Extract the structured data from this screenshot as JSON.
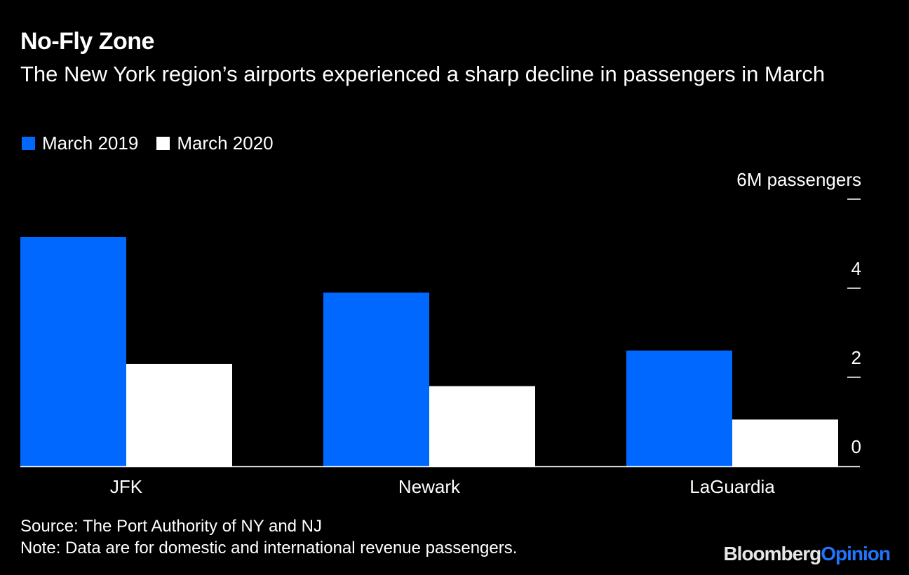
{
  "chart_data": {
    "type": "bar",
    "title": "No-Fly Zone",
    "subtitle": "The New York region’s airports experienced a sharp decline in passengers in March",
    "categories": [
      "JFK",
      "Newark",
      "LaGuardia"
    ],
    "series": [
      {
        "name": "March 2019",
        "color": "#0068ff",
        "values": [
          5.15,
          3.9,
          2.6
        ]
      },
      {
        "name": "March 2020",
        "color": "#ffffff",
        "values": [
          2.3,
          1.8,
          1.05
        ]
      }
    ],
    "ylim": [
      0,
      6
    ],
    "yticks": [
      {
        "value": 0,
        "label": "0"
      },
      {
        "value": 2,
        "label": "2"
      },
      {
        "value": 4,
        "label": "4"
      },
      {
        "value": 6,
        "label": "6M passengers"
      }
    ],
    "xlabel": "",
    "ylabel": "",
    "grid": false,
    "legend_position": "top-left"
  },
  "footer": {
    "source": "Source: The Port Authority of NY and NJ",
    "note": "Note: Data are for domestic and international revenue passengers."
  },
  "brand": {
    "primary": "Bloomberg",
    "accent": "Opinion"
  }
}
